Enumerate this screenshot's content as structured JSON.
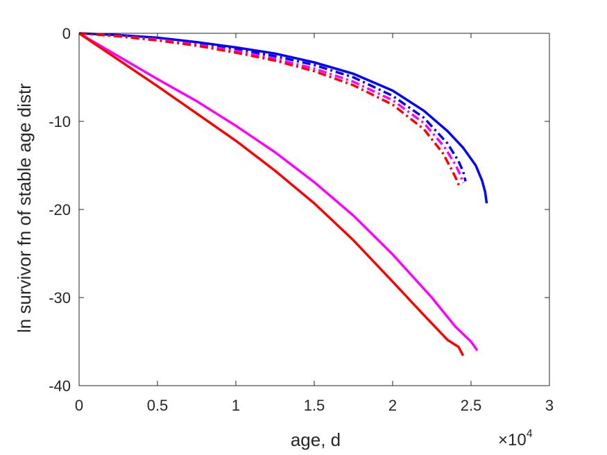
{
  "chart_data": {
    "type": "line",
    "title": "",
    "xlabel": "age, d",
    "ylabel": "ln survivor fn of stable age distr",
    "x_exponent_label": "×10",
    "x_exponent_power": "4",
    "x_multiplier": 10000,
    "xlim": [
      0,
      30000
    ],
    "ylim": [
      -40,
      0
    ],
    "xticks": [
      0,
      5000,
      10000,
      15000,
      20000,
      25000,
      30000
    ],
    "xtick_labels": [
      "0",
      "0.5",
      "1",
      "1.5",
      "2",
      "2.5",
      "3"
    ],
    "yticks": [
      0,
      -10,
      -20,
      -30,
      -40
    ],
    "ytick_labels": [
      "0",
      "-10",
      "-20",
      "-30",
      "-40"
    ],
    "grid": false,
    "legend": "none",
    "series": [
      {
        "color": "#0000ff",
        "style": "solid",
        "x": [
          0,
          2500,
          5000,
          7500,
          10000,
          12500,
          15000,
          17500,
          20000,
          22000,
          23500,
          24500,
          25300,
          25700,
          25900,
          26000
        ],
        "y": [
          0,
          -0.2,
          -0.5,
          -1.0,
          -1.6,
          -2.3,
          -3.3,
          -4.6,
          -6.5,
          -8.8,
          -11.1,
          -13.0,
          -15.0,
          -16.7,
          -18.0,
          -19.3
        ]
      },
      {
        "color": "#0000ff",
        "style": "dashdot",
        "x": [
          0,
          2500,
          5000,
          7500,
          10000,
          12500,
          15000,
          17500,
          20000,
          22000,
          23500,
          24200,
          24500,
          24650
        ],
        "y": [
          0,
          -0.25,
          -0.6,
          -1.1,
          -1.8,
          -2.6,
          -3.6,
          -5.0,
          -7.1,
          -9.6,
          -12.5,
          -14.5,
          -15.7,
          -16.8
        ]
      },
      {
        "color": "#ff00ff",
        "style": "dashdot",
        "x": [
          0,
          2500,
          5000,
          7500,
          10000,
          12500,
          15000,
          17500,
          20000,
          22000,
          23300,
          24000,
          24300,
          24500
        ],
        "y": [
          0,
          -0.3,
          -0.7,
          -1.3,
          -2.0,
          -2.9,
          -4.0,
          -5.5,
          -7.6,
          -10.2,
          -12.9,
          -14.9,
          -16.0,
          -17.0
        ]
      },
      {
        "color": "#ff0000",
        "style": "dashdot",
        "x": [
          0,
          2500,
          5000,
          7500,
          10000,
          12500,
          15000,
          17500,
          20000,
          22000,
          23200,
          23800,
          24100,
          24300
        ],
        "y": [
          0,
          -0.35,
          -0.8,
          -1.4,
          -2.2,
          -3.1,
          -4.3,
          -5.9,
          -8.1,
          -10.9,
          -13.6,
          -15.6,
          -16.7,
          -17.6
        ]
      },
      {
        "color": "#ff00ff",
        "style": "solid",
        "x": [
          0,
          2500,
          5000,
          7500,
          10000,
          12500,
          15000,
          17500,
          20000,
          22500,
          24000,
          25000,
          25400
        ],
        "y": [
          0,
          -2.6,
          -5.2,
          -7.7,
          -10.5,
          -13.5,
          -16.9,
          -20.7,
          -25.1,
          -30.0,
          -33.3,
          -35.0,
          -36.0
        ]
      },
      {
        "color": "#ff0000",
        "style": "solid",
        "x": [
          0,
          2500,
          5000,
          7500,
          10000,
          12500,
          15000,
          17500,
          20000,
          22000,
          23500,
          24200,
          24500
        ],
        "y": [
          0,
          -3.0,
          -6.0,
          -9.1,
          -12.2,
          -15.6,
          -19.3,
          -23.5,
          -28.2,
          -32.0,
          -34.8,
          -35.6,
          -36.6
        ]
      }
    ]
  }
}
